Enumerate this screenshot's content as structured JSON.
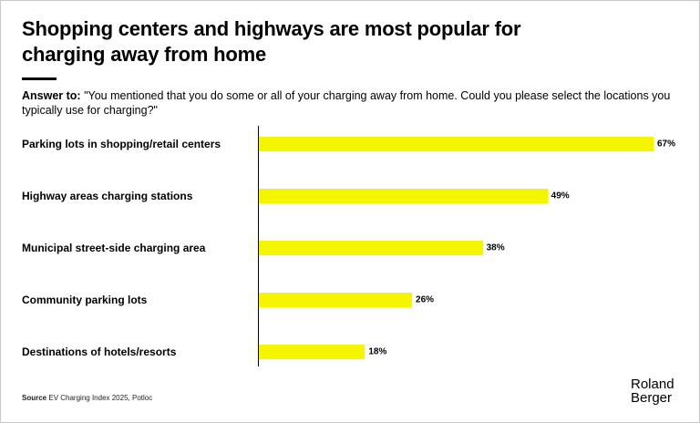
{
  "chart_data": {
    "type": "bar",
    "orientation": "horizontal",
    "title": "Shopping centers and highways are most popular for charging away from home",
    "subtitle_label": "Answer to:",
    "subtitle": "\"You mentioned that you do some or all of your charging away from home. Could you please select the locations you typically use for charging?\"",
    "categories": [
      "Parking lots in shopping/retail centers",
      "Highway areas charging stations",
      "Municipal street-side charging area",
      "Community parking lots",
      "Destinations of hotels/resorts"
    ],
    "values": [
      67,
      49,
      38,
      26,
      18
    ],
    "value_labels": [
      "67%",
      "49%",
      "38%",
      "26%",
      "18%"
    ],
    "xlim": [
      0,
      67
    ],
    "bar_color": "#f5f500",
    "xlabel": "",
    "ylabel": ""
  },
  "footer": {
    "source_label": "Source",
    "source_text": "EV Charging Index 2025, Potloc"
  },
  "logo": {
    "line1": "Roland",
    "line2": "Berger"
  }
}
